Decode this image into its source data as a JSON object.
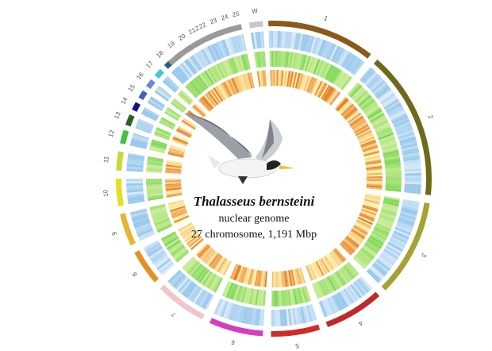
{
  "species": "Thalasseus bernsteini",
  "subtitle": "nuclear genome",
  "summary": "27 chromosome, 1,191 Mbp",
  "chromosomes": [
    {
      "label": "W",
      "color": "#c8c8c8"
    },
    {
      "label": "1",
      "color": "#8b5a1a"
    },
    {
      "label": "2",
      "color": "#6e6a1c"
    },
    {
      "label": "3",
      "color": "#a3a333"
    },
    {
      "label": "4",
      "color": "#c0282a"
    },
    {
      "label": "5",
      "color": "#d02a2a"
    },
    {
      "label": "6",
      "color": "#d33ec0"
    },
    {
      "label": "7",
      "color": "#f2c4cb"
    },
    {
      "label": "8",
      "color": "#e8901f"
    },
    {
      "label": "9",
      "color": "#e8b532"
    },
    {
      "label": "10",
      "color": "#e2e022"
    },
    {
      "label": "11",
      "color": "#c4da35"
    },
    {
      "label": "12",
      "color": "#3fc43f"
    },
    {
      "label": "13",
      "color": "#2f6020"
    },
    {
      "label": "14",
      "color": "#121282"
    },
    {
      "label": "15",
      "color": "#4263c2"
    },
    {
      "label": "16",
      "color": "#6a88d4"
    },
    {
      "label": "17",
      "color": "#45c5d6"
    },
    {
      "label": "18",
      "color": "#226385"
    },
    {
      "label": "19",
      "color": "#9022a2"
    },
    {
      "label": "20",
      "color": "#b048cc"
    },
    {
      "label": "21",
      "color": "#888888"
    },
    {
      "label": "22",
      "color": "#555555"
    },
    {
      "label": "23",
      "color": "#806040"
    },
    {
      "label": "24",
      "color": "#c0a060"
    },
    {
      "label": "25",
      "color": "#e0a040"
    },
    {
      "label": "Z",
      "color": "#9a9a9a"
    }
  ]
}
